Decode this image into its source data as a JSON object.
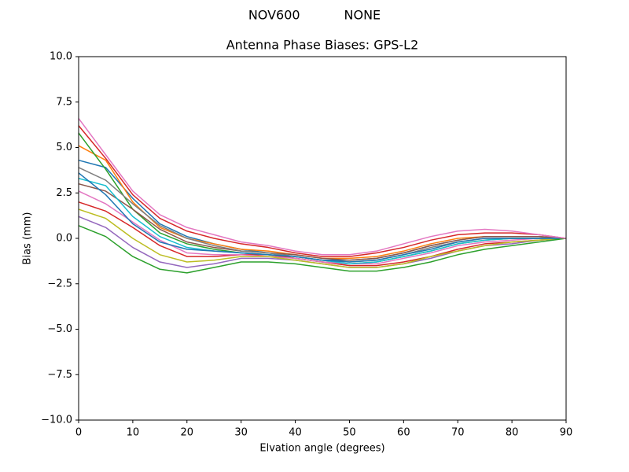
{
  "chart_data": {
    "type": "line",
    "suptitle": "NOV600           NONE",
    "title": "Antenna Phase Biases: GPS-L2",
    "x_label": "Elvation angle (degrees)",
    "y_label": "Bias (mm)",
    "x": [
      0,
      5,
      10,
      15,
      20,
      25,
      30,
      35,
      40,
      45,
      50,
      55,
      60,
      65,
      70,
      75,
      80,
      85,
      90
    ],
    "xlim": [
      0,
      90
    ],
    "xticks": [
      0,
      10,
      20,
      30,
      40,
      50,
      60,
      70,
      80,
      90
    ],
    "ylim": [
      -10,
      10
    ],
    "yticks": [
      {
        "value": -10,
        "label": "−10.0"
      },
      {
        "value": -7.5,
        "label": "−7.5"
      },
      {
        "value": -5,
        "label": "−5.0"
      },
      {
        "value": -2.5,
        "label": "−2.5"
      },
      {
        "value": 0,
        "label": "0.0"
      },
      {
        "value": 2.5,
        "label": "2.5"
      },
      {
        "value": 5,
        "label": "5.0"
      },
      {
        "value": 7.5,
        "label": "7.5"
      },
      {
        "value": 10,
        "label": "10.0"
      }
    ],
    "grid": false,
    "series": [
      {
        "color": "#1f77b4",
        "values": [
          4.3,
          3.9,
          2.2,
          0.8,
          0.1,
          -0.3,
          -0.6,
          -0.8,
          -1.0,
          -1.2,
          -1.2,
          -1.1,
          -0.8,
          -0.4,
          -0.1,
          0.1,
          0.1,
          0.1,
          0
        ]
      },
      {
        "color": "#ff7f0e",
        "values": [
          5.1,
          4.3,
          2.0,
          0.6,
          0,
          -0.3,
          -0.6,
          -0.7,
          -0.9,
          -1.1,
          -1.1,
          -1.0,
          -0.7,
          -0.3,
          0,
          0.1,
          0.1,
          0.1,
          0
        ]
      },
      {
        "color": "#2ca02c",
        "values": [
          5.8,
          3.8,
          1.6,
          0.3,
          -0.3,
          -0.6,
          -0.8,
          -0.9,
          -1.1,
          -1.3,
          -1.4,
          -1.3,
          -1.0,
          -0.7,
          -0.3,
          -0.1,
          0,
          0,
          0
        ]
      },
      {
        "color": "#d62728",
        "values": [
          2.0,
          1.5,
          0.6,
          -0.4,
          -1.0,
          -1.0,
          -0.9,
          -0.9,
          -1.1,
          -1.3,
          -1.5,
          -1.5,
          -1.3,
          -1.0,
          -0.6,
          -0.3,
          -0.2,
          -0.1,
          0
        ]
      },
      {
        "color": "#9467bd",
        "values": [
          1.2,
          0.6,
          -0.5,
          -1.3,
          -1.6,
          -1.4,
          -1.1,
          -1.1,
          -1.2,
          -1.4,
          -1.6,
          -1.6,
          -1.4,
          -1.1,
          -0.7,
          -0.4,
          -0.3,
          -0.1,
          0
        ]
      },
      {
        "color": "#8c564b",
        "values": [
          3.0,
          2.6,
          1.6,
          0.5,
          -0.2,
          -0.5,
          -0.7,
          -0.8,
          -0.9,
          -1.1,
          -1.2,
          -1.1,
          -0.8,
          -0.4,
          -0.1,
          0.1,
          0.1,
          0.1,
          0
        ]
      },
      {
        "color": "#e377c2",
        "values": [
          2.6,
          1.9,
          0.9,
          -0.1,
          -0.8,
          -0.9,
          -0.9,
          -1.0,
          -1.1,
          -1.3,
          -1.4,
          -1.4,
          -1.1,
          -0.8,
          -0.4,
          -0.2,
          -0.1,
          0,
          0
        ]
      },
      {
        "color": "#7f7f7f",
        "values": [
          3.9,
          3.2,
          1.9,
          0.7,
          0,
          -0.4,
          -0.7,
          -0.8,
          -1.0,
          -1.2,
          -1.3,
          -1.2,
          -0.9,
          -0.5,
          -0.2,
          0,
          0,
          0,
          0
        ]
      },
      {
        "color": "#bcbd22",
        "values": [
          1.6,
          1.1,
          0.0,
          -0.9,
          -1.3,
          -1.2,
          -1.0,
          -1.0,
          -1.2,
          -1.4,
          -1.6,
          -1.6,
          -1.4,
          -1.0,
          -0.7,
          -0.4,
          -0.2,
          -0.1,
          0
        ]
      },
      {
        "color": "#17becf",
        "values": [
          3.3,
          2.9,
          1.2,
          0.1,
          -0.5,
          -0.7,
          -0.8,
          -0.9,
          -1.0,
          -1.2,
          -1.4,
          -1.3,
          -1.0,
          -0.7,
          -0.3,
          -0.1,
          0,
          0,
          0
        ]
      },
      {
        "color": "#1f77b4",
        "values": [
          3.6,
          2.4,
          0.8,
          -0.2,
          -0.6,
          -0.7,
          -0.8,
          -0.9,
          -1.0,
          -1.2,
          -1.3,
          -1.2,
          -0.9,
          -0.6,
          -0.2,
          0,
          0,
          0,
          0
        ]
      },
      {
        "color": "#2ca02c",
        "values": [
          0.7,
          0.1,
          -1.0,
          -1.7,
          -1.9,
          -1.6,
          -1.3,
          -1.3,
          -1.4,
          -1.6,
          -1.8,
          -1.8,
          -1.6,
          -1.3,
          -0.9,
          -0.6,
          -0.4,
          -0.2,
          0
        ]
      },
      {
        "color": "#d62728",
        "values": [
          6.2,
          4.4,
          2.4,
          1.1,
          0.4,
          0,
          -0.3,
          -0.5,
          -0.8,
          -1.0,
          -1.0,
          -0.8,
          -0.5,
          -0.1,
          0.2,
          0.3,
          0.3,
          0.2,
          0
        ]
      },
      {
        "color": "#e377c2",
        "values": [
          6.6,
          4.6,
          2.6,
          1.3,
          0.6,
          0.2,
          -0.2,
          -0.4,
          -0.7,
          -0.9,
          -0.9,
          -0.7,
          -0.3,
          0.1,
          0.4,
          0.5,
          0.4,
          0.2,
          0
        ]
      }
    ]
  }
}
